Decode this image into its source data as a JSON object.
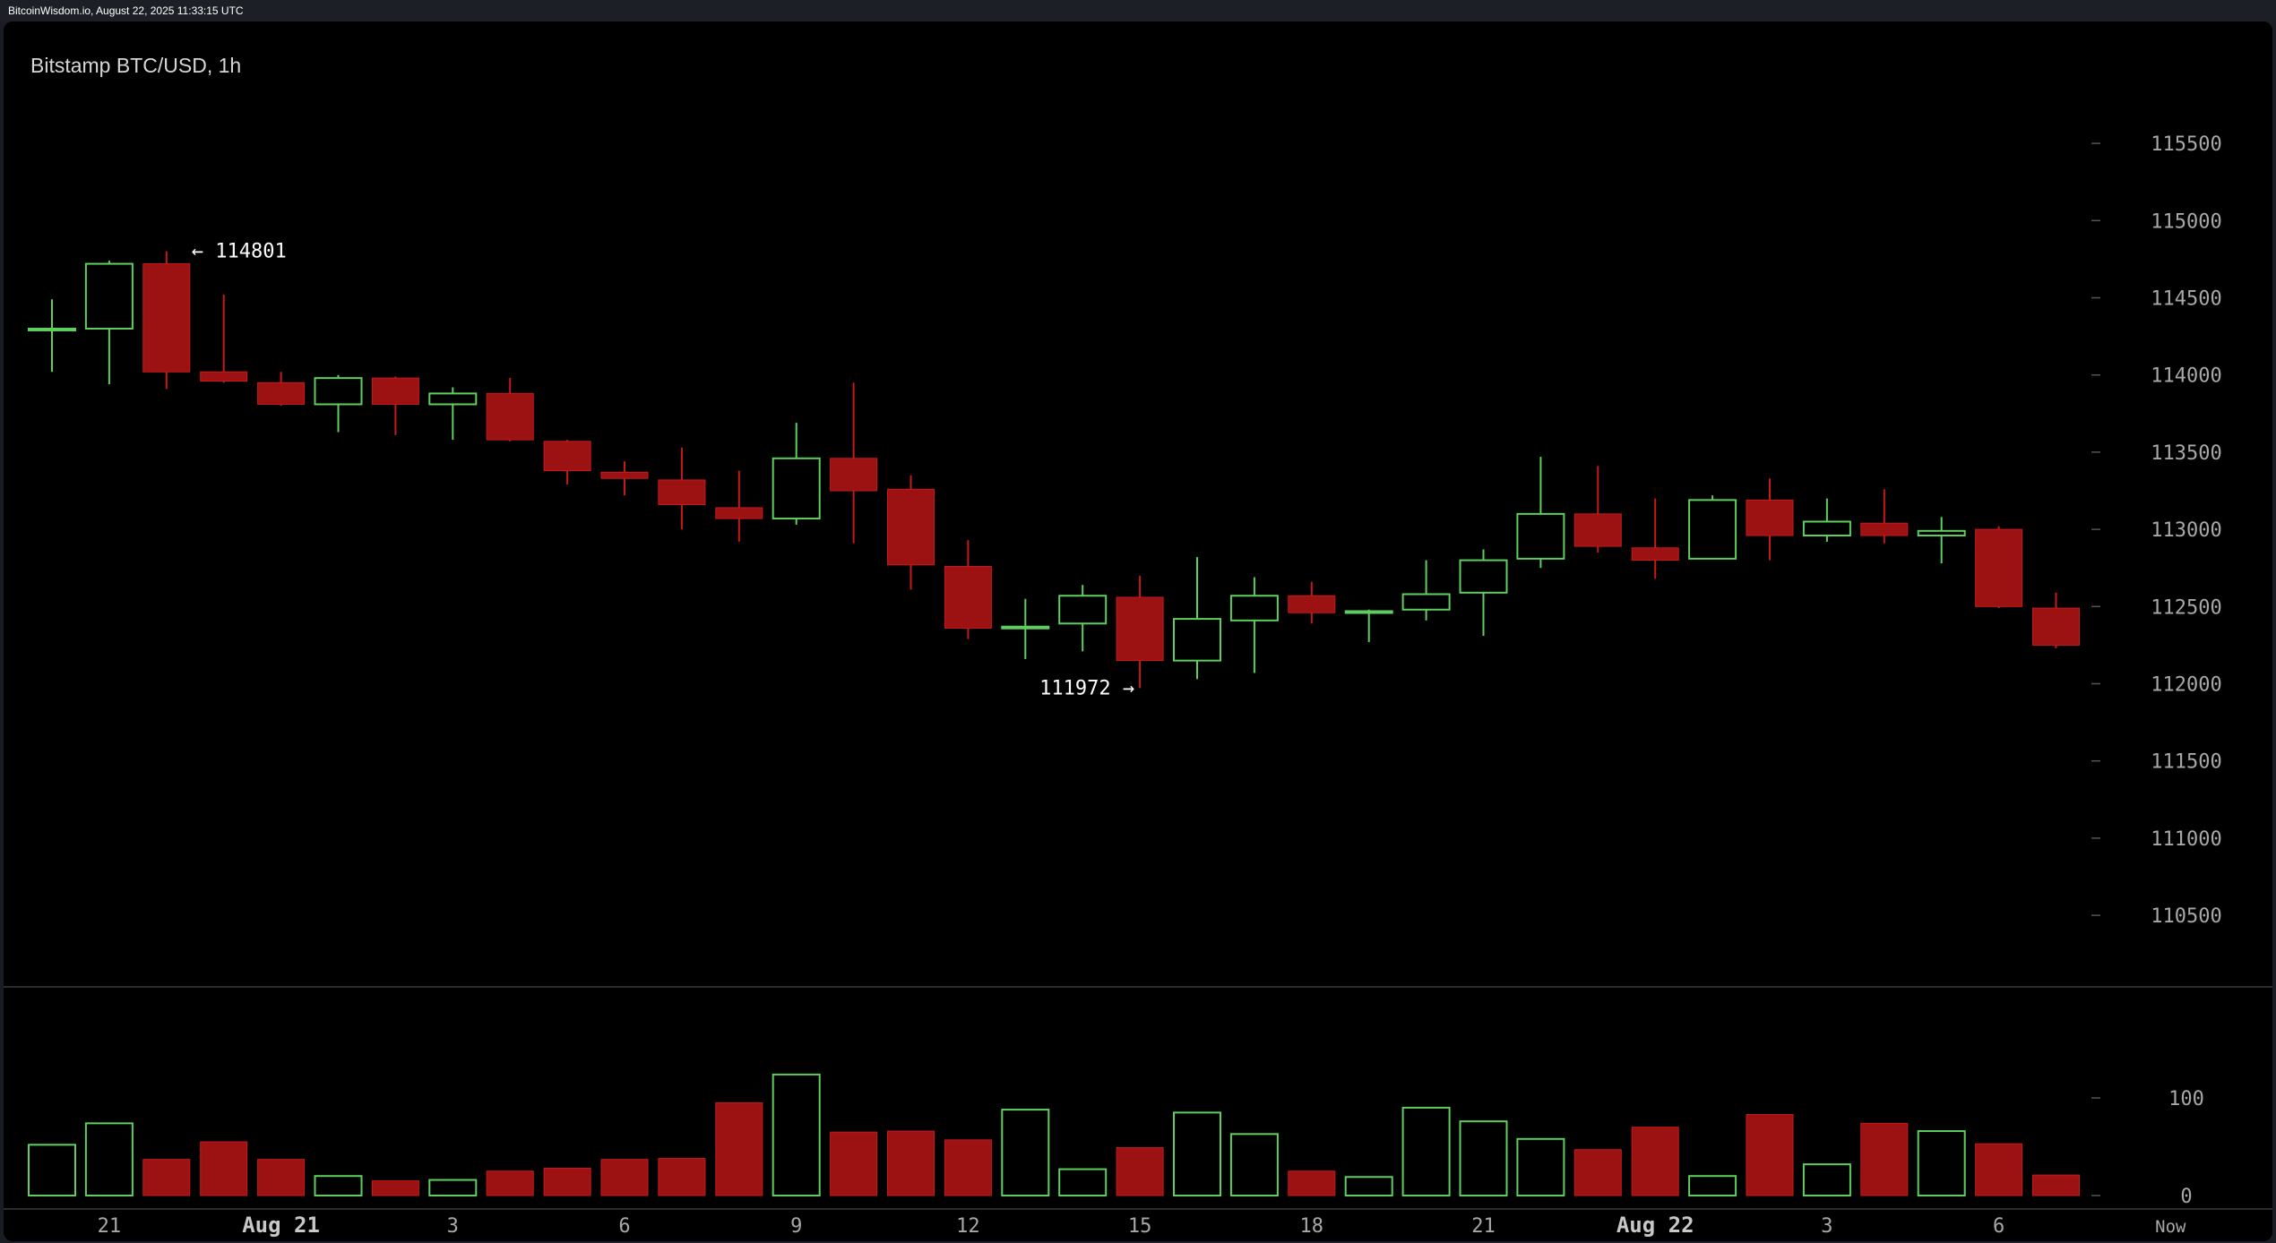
{
  "header": {
    "source": "BitcoinWisdom.io, August 22, 2025 11:33:15 UTC"
  },
  "chart_data": {
    "type": "candlestick",
    "title": "Bitstamp BTC/USD, 1h",
    "colors": {
      "up": "#5ecf5e",
      "down": "#9c1111",
      "down_edge": "#c61a1a",
      "grid_tick": "#555555",
      "label": "#a8a8a8",
      "annotation": "#ffffff"
    },
    "price_axis": {
      "ticks": [
        110500,
        111000,
        111500,
        112000,
        112500,
        113000,
        113500,
        114000,
        114500,
        115000,
        115500
      ],
      "labels": [
        "110500",
        "111000",
        "111500",
        "112000",
        "112500",
        "113000",
        "113500",
        "114000",
        "114500",
        "115000",
        "115500"
      ],
      "range": [
        110000,
        116000
      ]
    },
    "volume_axis": {
      "ticks": [
        0,
        100
      ],
      "labels": [
        "0",
        "100"
      ]
    },
    "time_axis": {
      "labels": [
        {
          "index": 1,
          "text": "21",
          "bold": false
        },
        {
          "index": 4,
          "text": "Aug 21",
          "bold": true
        },
        {
          "index": 7,
          "text": "3",
          "bold": false
        },
        {
          "index": 10,
          "text": "6",
          "bold": false
        },
        {
          "index": 13,
          "text": "9",
          "bold": false
        },
        {
          "index": 16,
          "text": "12",
          "bold": false
        },
        {
          "index": 19,
          "text": "15",
          "bold": false
        },
        {
          "index": 22,
          "text": "18",
          "bold": false
        },
        {
          "index": 25,
          "text": "21",
          "bold": false
        },
        {
          "index": 28,
          "text": "Aug 22",
          "bold": true
        },
        {
          "index": 31,
          "text": "3",
          "bold": false
        },
        {
          "index": 34,
          "text": "6",
          "bold": false
        },
        {
          "index": 37,
          "text": "Now",
          "bold": false
        }
      ]
    },
    "annotations": {
      "high": {
        "index": 2,
        "value": 114801,
        "text": "← 114801"
      },
      "low": {
        "index": 19,
        "value": 111972,
        "text": "111972 →"
      }
    },
    "candles": [
      {
        "o": 114290,
        "h": 114490,
        "l": 114020,
        "c": 114300,
        "v": 52
      },
      {
        "o": 114300,
        "h": 114740,
        "l": 113940,
        "c": 114720,
        "v": 74
      },
      {
        "o": 114720,
        "h": 114801,
        "l": 113910,
        "c": 114020,
        "v": 37
      },
      {
        "o": 114020,
        "h": 114520,
        "l": 113950,
        "c": 113960,
        "v": 55
      },
      {
        "o": 113950,
        "h": 114020,
        "l": 113800,
        "c": 113810,
        "v": 37
      },
      {
        "o": 113810,
        "h": 114000,
        "l": 113630,
        "c": 113980,
        "v": 20
      },
      {
        "o": 113980,
        "h": 113990,
        "l": 113610,
        "c": 113810,
        "v": 15
      },
      {
        "o": 113810,
        "h": 113920,
        "l": 113580,
        "c": 113880,
        "v": 16
      },
      {
        "o": 113880,
        "h": 113980,
        "l": 113570,
        "c": 113580,
        "v": 25
      },
      {
        "o": 113570,
        "h": 113580,
        "l": 113290,
        "c": 113380,
        "v": 28
      },
      {
        "o": 113370,
        "h": 113440,
        "l": 113220,
        "c": 113330,
        "v": 37
      },
      {
        "o": 113320,
        "h": 113530,
        "l": 113000,
        "c": 113160,
        "v": 38
      },
      {
        "o": 113140,
        "h": 113380,
        "l": 112920,
        "c": 113070,
        "v": 95
      },
      {
        "o": 113070,
        "h": 113690,
        "l": 113030,
        "c": 113460,
        "v": 124
      },
      {
        "o": 113460,
        "h": 113950,
        "l": 112910,
        "c": 113250,
        "v": 65
      },
      {
        "o": 113260,
        "h": 113350,
        "l": 112610,
        "c": 112770,
        "v": 66
      },
      {
        "o": 112760,
        "h": 112930,
        "l": 112290,
        "c": 112360,
        "v": 57
      },
      {
        "o": 112360,
        "h": 112550,
        "l": 112160,
        "c": 112370,
        "v": 88
      },
      {
        "o": 112390,
        "h": 112640,
        "l": 112210,
        "c": 112570,
        "v": 27
      },
      {
        "o": 112560,
        "h": 112700,
        "l": 111972,
        "c": 112150,
        "v": 49
      },
      {
        "o": 112150,
        "h": 112820,
        "l": 112030,
        "c": 112420,
        "v": 85
      },
      {
        "o": 112410,
        "h": 112690,
        "l": 112070,
        "c": 112570,
        "v": 63
      },
      {
        "o": 112570,
        "h": 112660,
        "l": 112390,
        "c": 112460,
        "v": 25
      },
      {
        "o": 112460,
        "h": 112480,
        "l": 112270,
        "c": 112470,
        "v": 19
      },
      {
        "o": 112480,
        "h": 112800,
        "l": 112410,
        "c": 112580,
        "v": 90
      },
      {
        "o": 112590,
        "h": 112870,
        "l": 112310,
        "c": 112800,
        "v": 76
      },
      {
        "o": 112810,
        "h": 113470,
        "l": 112750,
        "c": 113100,
        "v": 58
      },
      {
        "o": 113100,
        "h": 113410,
        "l": 112850,
        "c": 112890,
        "v": 47
      },
      {
        "o": 112880,
        "h": 113200,
        "l": 112680,
        "c": 112800,
        "v": 70
      },
      {
        "o": 112810,
        "h": 113220,
        "l": 112810,
        "c": 113190,
        "v": 20
      },
      {
        "o": 113190,
        "h": 113330,
        "l": 112800,
        "c": 112960,
        "v": 83
      },
      {
        "o": 112960,
        "h": 113200,
        "l": 112920,
        "c": 113050,
        "v": 32
      },
      {
        "o": 113040,
        "h": 113260,
        "l": 112910,
        "c": 112960,
        "v": 74
      },
      {
        "o": 112960,
        "h": 113080,
        "l": 112780,
        "c": 112990,
        "v": 66
      },
      {
        "o": 113000,
        "h": 113020,
        "l": 112490,
        "c": 112500,
        "v": 53
      },
      {
        "o": 112490,
        "h": 112590,
        "l": 112230,
        "c": 112250,
        "v": 21
      }
    ]
  }
}
